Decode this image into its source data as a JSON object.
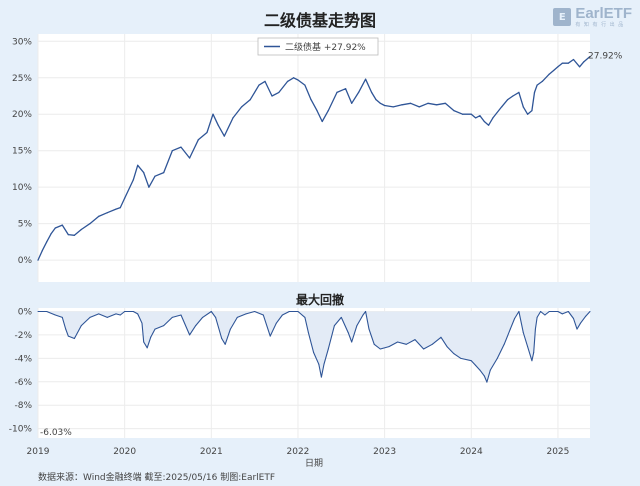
{
  "chart_data": [
    {
      "type": "line",
      "title": "二级债基走势图",
      "yticks": [
        "30%",
        "25%",
        "20%",
        "15%",
        "10%",
        "5%",
        "0%"
      ],
      "ylim": [
        -3,
        31
      ],
      "grid": true,
      "legend_position": "top-center",
      "series": [
        {
          "name": "二级债基",
          "legend_label": "二级债基  +27.92%",
          "end_label": "27.92%",
          "color": "#2f5597",
          "points": [
            [
              2019.0,
              0
            ],
            [
              2019.05,
              1.3
            ],
            [
              2019.1,
              2.5
            ],
            [
              2019.15,
              3.6
            ],
            [
              2019.2,
              4.4
            ],
            [
              2019.28,
              4.8
            ],
            [
              2019.35,
              3.5
            ],
            [
              2019.42,
              3.4
            ],
            [
              2019.5,
              4.2
            ],
            [
              2019.6,
              5.0
            ],
            [
              2019.7,
              6.0
            ],
            [
              2019.8,
              6.5
            ],
            [
              2019.9,
              7.0
            ],
            [
              2019.95,
              7.2
            ],
            [
              2020.0,
              8.5
            ],
            [
              2020.1,
              11.0
            ],
            [
              2020.15,
              13.0
            ],
            [
              2020.22,
              12.0
            ],
            [
              2020.28,
              10.0
            ],
            [
              2020.35,
              11.5
            ],
            [
              2020.45,
              12.0
            ],
            [
              2020.55,
              15.0
            ],
            [
              2020.65,
              15.5
            ],
            [
              2020.75,
              14.0
            ],
            [
              2020.85,
              16.5
            ],
            [
              2020.95,
              17.5
            ],
            [
              2021.02,
              20.0
            ],
            [
              2021.08,
              18.5
            ],
            [
              2021.15,
              17.0
            ],
            [
              2021.25,
              19.5
            ],
            [
              2021.35,
              21.0
            ],
            [
              2021.45,
              22.0
            ],
            [
              2021.55,
              24.0
            ],
            [
              2021.62,
              24.5
            ],
            [
              2021.7,
              22.5
            ],
            [
              2021.78,
              23.0
            ],
            [
              2021.88,
              24.5
            ],
            [
              2021.95,
              25.0
            ],
            [
              2022.0,
              24.7
            ],
            [
              2022.08,
              24.0
            ],
            [
              2022.15,
              22.0
            ],
            [
              2022.22,
              20.5
            ],
            [
              2022.28,
              19.0
            ],
            [
              2022.35,
              20.5
            ],
            [
              2022.45,
              23.0
            ],
            [
              2022.55,
              23.5
            ],
            [
              2022.62,
              21.5
            ],
            [
              2022.7,
              23.0
            ],
            [
              2022.78,
              24.8
            ],
            [
              2022.85,
              23.0
            ],
            [
              2022.9,
              22.0
            ],
            [
              2022.95,
              21.5
            ],
            [
              2023.0,
              21.2
            ],
            [
              2023.1,
              21.0
            ],
            [
              2023.2,
              21.3
            ],
            [
              2023.3,
              21.5
            ],
            [
              2023.4,
              21.0
            ],
            [
              2023.5,
              21.5
            ],
            [
              2023.6,
              21.3
            ],
            [
              2023.7,
              21.5
            ],
            [
              2023.8,
              20.5
            ],
            [
              2023.9,
              20.0
            ],
            [
              2024.0,
              20.0
            ],
            [
              2024.05,
              19.5
            ],
            [
              2024.1,
              19.8
            ],
            [
              2024.15,
              19.0
            ],
            [
              2024.2,
              18.5
            ],
            [
              2024.25,
              19.5
            ],
            [
              2024.35,
              21.0
            ],
            [
              2024.42,
              22.0
            ],
            [
              2024.48,
              22.5
            ],
            [
              2024.55,
              23.0
            ],
            [
              2024.6,
              21.0
            ],
            [
              2024.65,
              20.0
            ],
            [
              2024.7,
              20.5
            ],
            [
              2024.73,
              23.0
            ],
            [
              2024.76,
              24.0
            ],
            [
              2024.82,
              24.5
            ],
            [
              2024.9,
              25.5
            ],
            [
              2024.95,
              26.0
            ],
            [
              2025.0,
              26.5
            ],
            [
              2025.05,
              27.0
            ],
            [
              2025.12,
              27.0
            ],
            [
              2025.18,
              27.5
            ],
            [
              2025.25,
              26.5
            ],
            [
              2025.3,
              27.2
            ],
            [
              2025.37,
              27.92
            ]
          ]
        }
      ]
    },
    {
      "type": "area",
      "title": "最大回撤",
      "xlabel": "日期",
      "xticks": [
        "2019",
        "2020",
        "2021",
        "2022",
        "2023",
        "2024",
        "2025"
      ],
      "yticks": [
        "0%",
        "-2%",
        "-4%",
        "-6%",
        "-8%",
        "-10%"
      ],
      "ylim": [
        -10.8,
        0.3
      ],
      "min_label": "-6.03%",
      "grid": true,
      "series": [
        {
          "name": "最大回撤",
          "color": "#2f5597",
          "points": [
            [
              2019.0,
              0
            ],
            [
              2019.1,
              0
            ],
            [
              2019.2,
              -0.3
            ],
            [
              2019.28,
              -0.5
            ],
            [
              2019.32,
              -1.5
            ],
            [
              2019.35,
              -2.1
            ],
            [
              2019.42,
              -2.3
            ],
            [
              2019.5,
              -1.2
            ],
            [
              2019.6,
              -0.5
            ],
            [
              2019.7,
              -0.2
            ],
            [
              2019.8,
              -0.5
            ],
            [
              2019.9,
              -0.2
            ],
            [
              2019.95,
              -0.3
            ],
            [
              2020.0,
              0
            ],
            [
              2020.1,
              0
            ],
            [
              2020.15,
              -0.2
            ],
            [
              2020.2,
              -1.0
            ],
            [
              2020.22,
              -2.6
            ],
            [
              2020.26,
              -3.1
            ],
            [
              2020.3,
              -2.2
            ],
            [
              2020.35,
              -1.5
            ],
            [
              2020.45,
              -1.2
            ],
            [
              2020.55,
              -0.5
            ],
            [
              2020.65,
              -0.3
            ],
            [
              2020.75,
              -2.0
            ],
            [
              2020.82,
              -1.2
            ],
            [
              2020.9,
              -0.5
            ],
            [
              2021.0,
              0
            ],
            [
              2021.05,
              -0.5
            ],
            [
              2021.12,
              -2.3
            ],
            [
              2021.16,
              -2.8
            ],
            [
              2021.22,
              -1.5
            ],
            [
              2021.3,
              -0.5
            ],
            [
              2021.4,
              -0.2
            ],
            [
              2021.5,
              0
            ],
            [
              2021.6,
              -0.3
            ],
            [
              2021.68,
              -2.1
            ],
            [
              2021.75,
              -1.0
            ],
            [
              2021.82,
              -0.3
            ],
            [
              2021.9,
              0
            ],
            [
              2022.0,
              0
            ],
            [
              2022.08,
              -0.5
            ],
            [
              2022.12,
              -1.8
            ],
            [
              2022.18,
              -3.5
            ],
            [
              2022.24,
              -4.5
            ],
            [
              2022.27,
              -5.6
            ],
            [
              2022.3,
              -4.5
            ],
            [
              2022.35,
              -3.2
            ],
            [
              2022.42,
              -1.2
            ],
            [
              2022.5,
              -0.5
            ],
            [
              2022.58,
              -1.8
            ],
            [
              2022.62,
              -2.6
            ],
            [
              2022.68,
              -1.2
            ],
            [
              2022.75,
              -0.3
            ],
            [
              2022.78,
              0
            ],
            [
              2022.82,
              -1.5
            ],
            [
              2022.88,
              -2.8
            ],
            [
              2022.95,
              -3.2
            ],
            [
              2023.05,
              -3.0
            ],
            [
              2023.15,
              -2.6
            ],
            [
              2023.25,
              -2.8
            ],
            [
              2023.35,
              -2.4
            ],
            [
              2023.45,
              -3.2
            ],
            [
              2023.55,
              -2.8
            ],
            [
              2023.65,
              -2.2
            ],
            [
              2023.72,
              -3.0
            ],
            [
              2023.8,
              -3.6
            ],
            [
              2023.88,
              -4.0
            ],
            [
              2024.0,
              -4.2
            ],
            [
              2024.05,
              -4.6
            ],
            [
              2024.1,
              -5.0
            ],
            [
              2024.15,
              -5.5
            ],
            [
              2024.18,
              -6.03
            ],
            [
              2024.22,
              -5.0
            ],
            [
              2024.3,
              -4.0
            ],
            [
              2024.38,
              -2.8
            ],
            [
              2024.45,
              -1.5
            ],
            [
              2024.5,
              -0.6
            ],
            [
              2024.55,
              0
            ],
            [
              2024.6,
              -1.8
            ],
            [
              2024.65,
              -3.0
            ],
            [
              2024.7,
              -4.2
            ],
            [
              2024.72,
              -3.5
            ],
            [
              2024.74,
              -1.5
            ],
            [
              2024.76,
              -0.5
            ],
            [
              2024.8,
              0
            ],
            [
              2024.85,
              -0.3
            ],
            [
              2024.9,
              0
            ],
            [
              2025.0,
              0
            ],
            [
              2025.05,
              -0.2
            ],
            [
              2025.12,
              0
            ],
            [
              2025.18,
              -0.6
            ],
            [
              2025.22,
              -1.5
            ],
            [
              2025.26,
              -1.0
            ],
            [
              2025.32,
              -0.4
            ],
            [
              2025.37,
              0
            ]
          ]
        }
      ]
    }
  ],
  "header": {
    "title": "二级债基走势图",
    "logo_text": "EarlETF",
    "logo_sub": "有 知 有 行 出 品"
  },
  "drawdown_title": "最大回撤",
  "footer": "数据来源：Wind金融终端 截至:2025/05/16 制图:EarlETF"
}
